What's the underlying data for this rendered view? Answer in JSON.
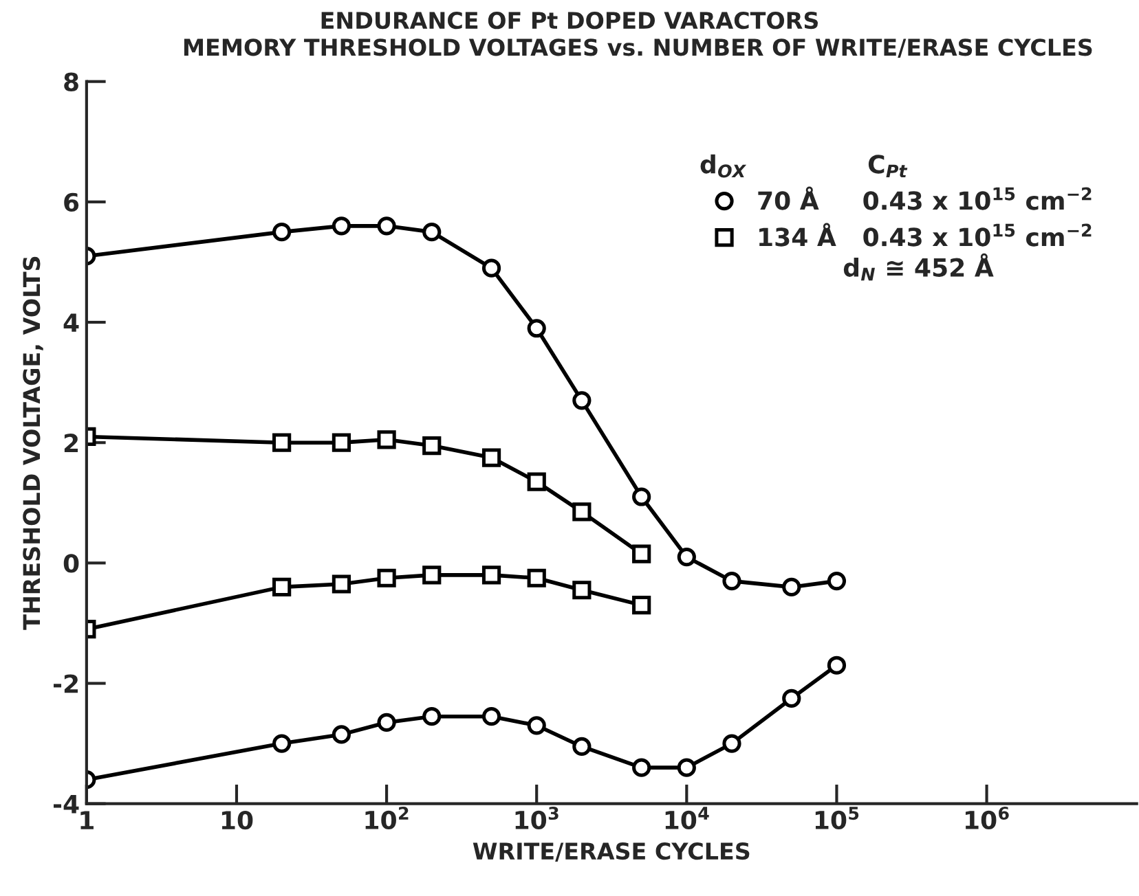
{
  "chart_data": {
    "type": "line",
    "title": "ENDURANCE OF Pt DOPED VARACTORS",
    "subtitle": "MEMORY THRESHOLD VOLTAGES vs. NUMBER OF WRITE/ERASE CYCLES",
    "xlabel": "WRITE/ERASE CYCLES",
    "ylabel": "THRESHOLD VOLTAGE, VOLTS",
    "legend_title": "d$_{OX}$              C$_{Pt}$",
    "annotations": [
      "d$_{N}$ ≅ 452 Å"
    ],
    "log": "x",
    "xlim": [
      1,
      10000000
    ],
    "xticks": [
      1,
      10,
      {
        "value": 100,
        "label": "10$^{2}$"
      },
      {
        "value": 1000,
        "label": "10$^{3}$"
      },
      {
        "value": 10000,
        "label": "10$^{4}$"
      },
      {
        "value": 100000,
        "label": "10$^{5}$"
      },
      {
        "value": 1000000,
        "label": "10$^{6}$"
      }
    ],
    "ylim": [
      -4,
      8
    ],
    "yticks": [
      -4,
      -2,
      0,
      2,
      4,
      6,
      8
    ],
    "grid": false,
    "legend": "top right",
    "line_style": "solid",
    "series": [
      {
        "name": "70 Å     0.43 x 10$^{15}$ cm$^{−2}$",
        "color": "#000000",
        "marker": "circle",
        "x": [
          1,
          20,
          50,
          100,
          200,
          500,
          1000,
          2000,
          5000,
          10000,
          20000,
          50000,
          100000
        ],
        "values": [
          5.1,
          5.5,
          5.6,
          5.6,
          5.5,
          4.9,
          3.9,
          2.7,
          1.1,
          0.1,
          -0.3,
          -0.4,
          -0.3
        ]
      },
      {
        "name": "134 Å   0.43 x 10$^{15}$ cm$^{−2}$",
        "color": "#000000",
        "marker": "square",
        "x": [
          1,
          20,
          50,
          100,
          200,
          500,
          1000,
          2000,
          5000
        ],
        "values": [
          2.1,
          2.0,
          2.0,
          2.05,
          1.95,
          1.75,
          1.35,
          0.85,
          0.15
        ]
      },
      {
        "color": "#000000",
        "marker": "square",
        "x": [
          1,
          20,
          50,
          100,
          200,
          500,
          1000,
          2000,
          5000
        ],
        "values": [
          -1.1,
          -0.4,
          -0.35,
          -0.25,
          -0.2,
          -0.2,
          -0.25,
          -0.45,
          -0.7
        ]
      },
      {
        "color": "#000000",
        "marker": "circle",
        "x": [
          1,
          20,
          50,
          100,
          200,
          500,
          1000,
          2000,
          5000,
          10000,
          20000,
          50000,
          100000
        ],
        "values": [
          -3.6,
          -3.0,
          -2.85,
          -2.65,
          -2.55,
          -2.55,
          -2.7,
          -3.05,
          -3.4,
          -3.4,
          -3.0,
          -2.25,
          -1.7
        ]
      }
    ]
  }
}
